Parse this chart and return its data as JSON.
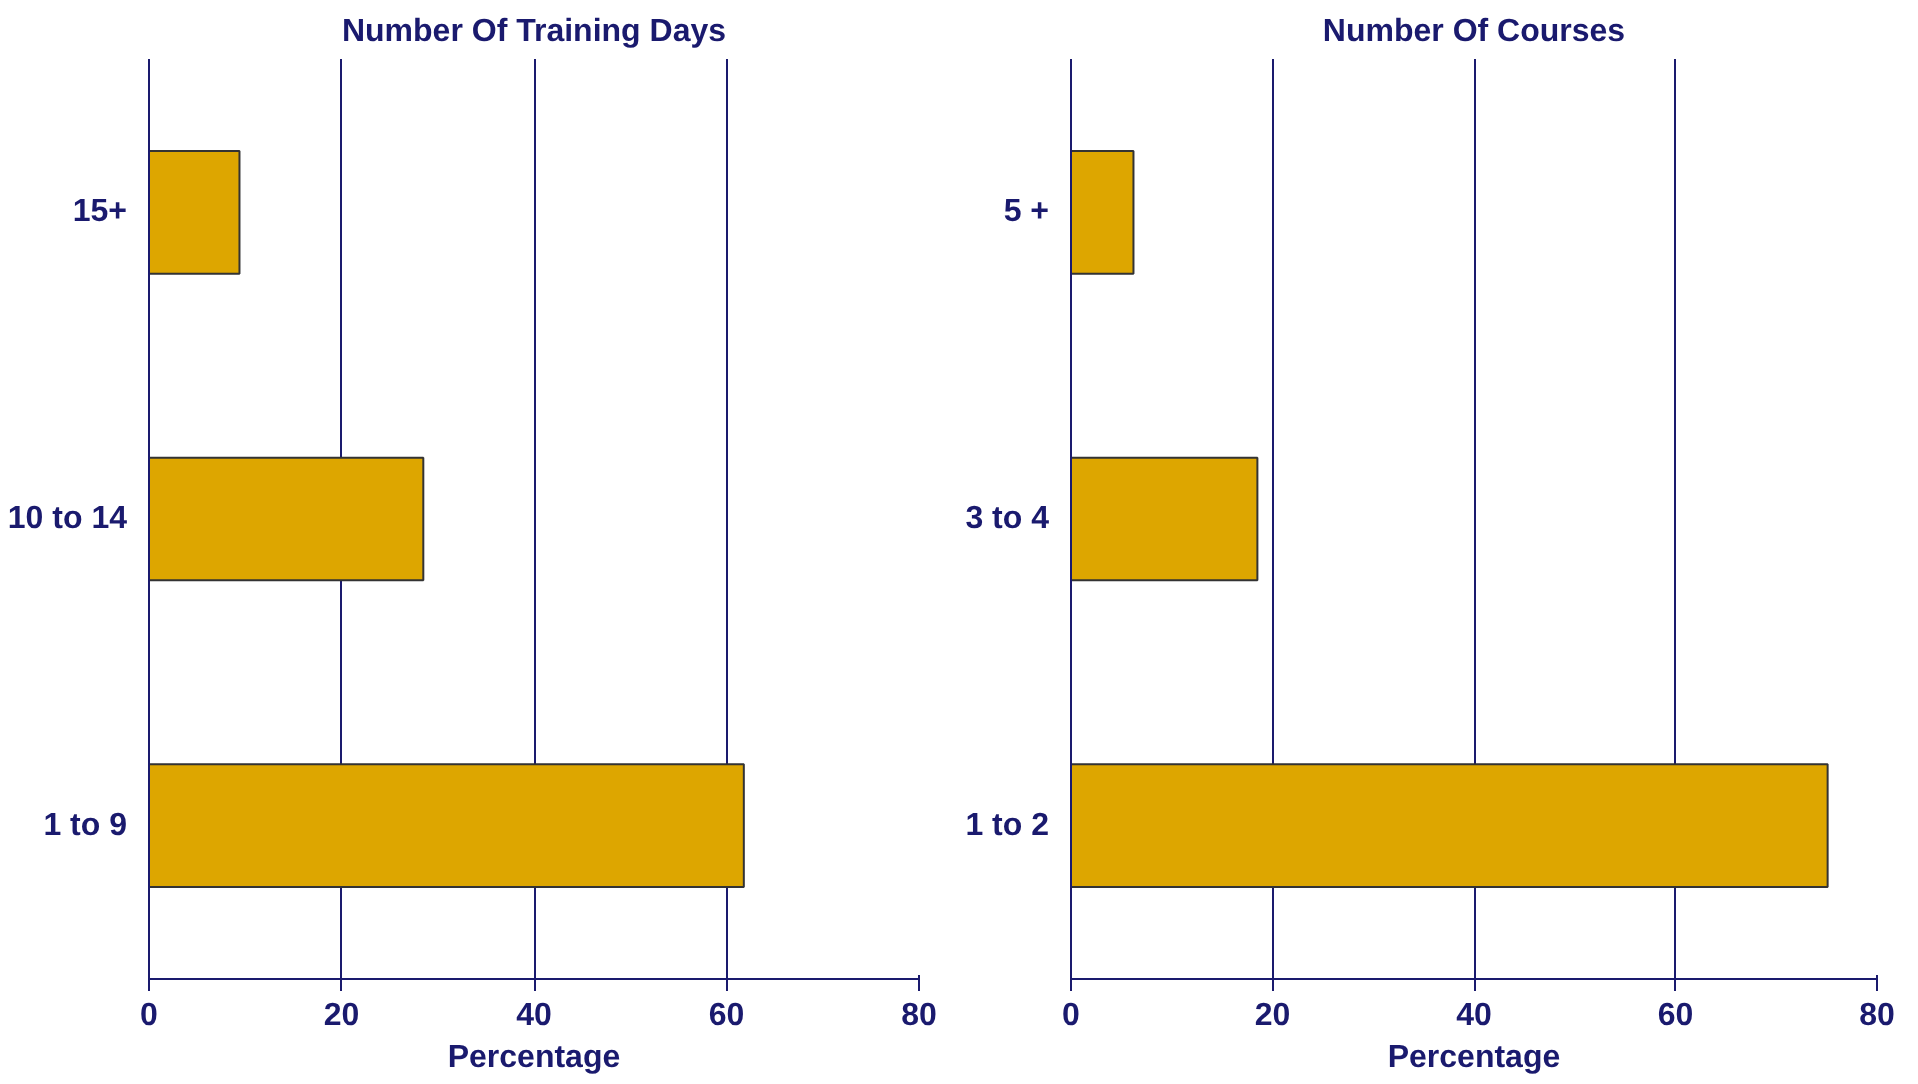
{
  "chart_data": [
    {
      "type": "bar",
      "orientation": "horizontal",
      "title": "Number Of Training Days",
      "xlabel": "Percentage",
      "categories": [
        "15+",
        "10 to 14",
        "1 to 9"
      ],
      "values": [
        9.4,
        28.5,
        61.8
      ],
      "color": "#dda600",
      "xlim": [
        0,
        80
      ],
      "xticks": [
        0,
        20,
        40,
        60,
        80
      ],
      "grid": "x"
    },
    {
      "type": "bar",
      "orientation": "horizontal",
      "title": "Number Of Courses",
      "xlabel": "Percentage",
      "categories": [
        "5 +",
        "3 to 4",
        "1 to 2"
      ],
      "values": [
        6.2,
        18.5,
        75.1
      ],
      "color": "#dda600",
      "xlim": [
        0,
        80
      ],
      "xticks": [
        0,
        20,
        40,
        60,
        80
      ],
      "grid": "x"
    }
  ]
}
